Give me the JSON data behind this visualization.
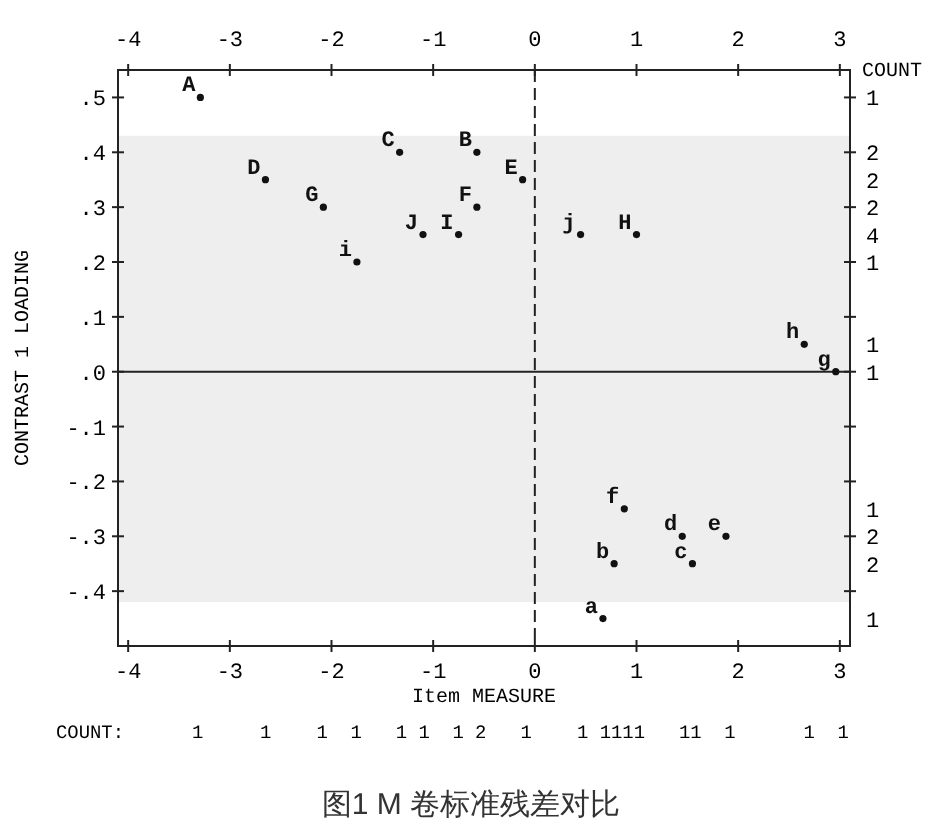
{
  "chart_data": {
    "type": "scatter",
    "xlabel": "Item MEASURE",
    "ylabel": "CONTRAST 1 LOADING",
    "y2label": "COUNT",
    "xlim": [
      -4.1,
      3.1
    ],
    "xticks": [
      -4,
      -3,
      -2,
      -1,
      0,
      1,
      2,
      3
    ],
    "x2lim": [
      -4.1,
      3.1
    ],
    "x2ticks": [
      -4,
      -3,
      -2,
      -1,
      0,
      1,
      2,
      3
    ],
    "ylim": [
      -0.5,
      0.55
    ],
    "yticks": [
      {
        "value": 0.5,
        "label": ".5"
      },
      {
        "value": 0.4,
        "label": ".4"
      },
      {
        "value": 0.3,
        "label": ".3"
      },
      {
        "value": 0.2,
        "label": ".2"
      },
      {
        "value": 0.1,
        "label": ".1"
      },
      {
        "value": 0,
        "label": ".0"
      },
      {
        "value": -0.1,
        "label": "-.1"
      },
      {
        "value": -0.2,
        "label": "-.2"
      },
      {
        "value": -0.3,
        "label": "-.3"
      },
      {
        "value": -0.4,
        "label": "-.4"
      }
    ],
    "series": [
      {
        "color": "#111111",
        "x": [
          -3.29,
          -1.33,
          -0.57,
          -2.65,
          -0.12,
          -2.08,
          -0.57,
          -1.1,
          -0.75,
          0.45,
          1.0,
          -1.75,
          2.65,
          2.96,
          0.88,
          1.45,
          1.88,
          0.78,
          1.55,
          0.67
        ],
        "values": [
          0.5,
          0.4,
          0.4,
          0.35,
          0.35,
          0.3,
          0.3,
          0.25,
          0.25,
          0.25,
          0.25,
          0.2,
          0.05,
          0.0,
          -0.25,
          -0.3,
          -0.3,
          -0.35,
          -0.35,
          -0.45
        ],
        "value_labels": [
          "A",
          "C",
          "B",
          "D",
          "E",
          "G",
          "F",
          "J",
          "I",
          "j",
          "H",
          "i",
          "h",
          "g",
          "f",
          "d",
          "e",
          "b",
          "c",
          "a"
        ]
      }
    ],
    "ref_lines": [
      {
        "axis": "x",
        "value": 0,
        "line_style": "dashed",
        "color": "#222222"
      },
      {
        "axis": "y",
        "value": 0,
        "line_style": "solid",
        "color": "#222222"
      }
    ],
    "bands": [
      {
        "axis": "y",
        "from": -0.42,
        "to": 0.43,
        "color": "#eeeeee"
      }
    ],
    "annotations": [
      "COUNT:      1     1    1  1   1 1  1 2   1    1 1111   11  1      1  1",
      "1\n\n2\n2\n2\n4\n1\n\n\n1\n1\n\n\n\n\n1\n2\n2\n\n1",
      "图1  M 卷标准残差对比"
    ]
  }
}
